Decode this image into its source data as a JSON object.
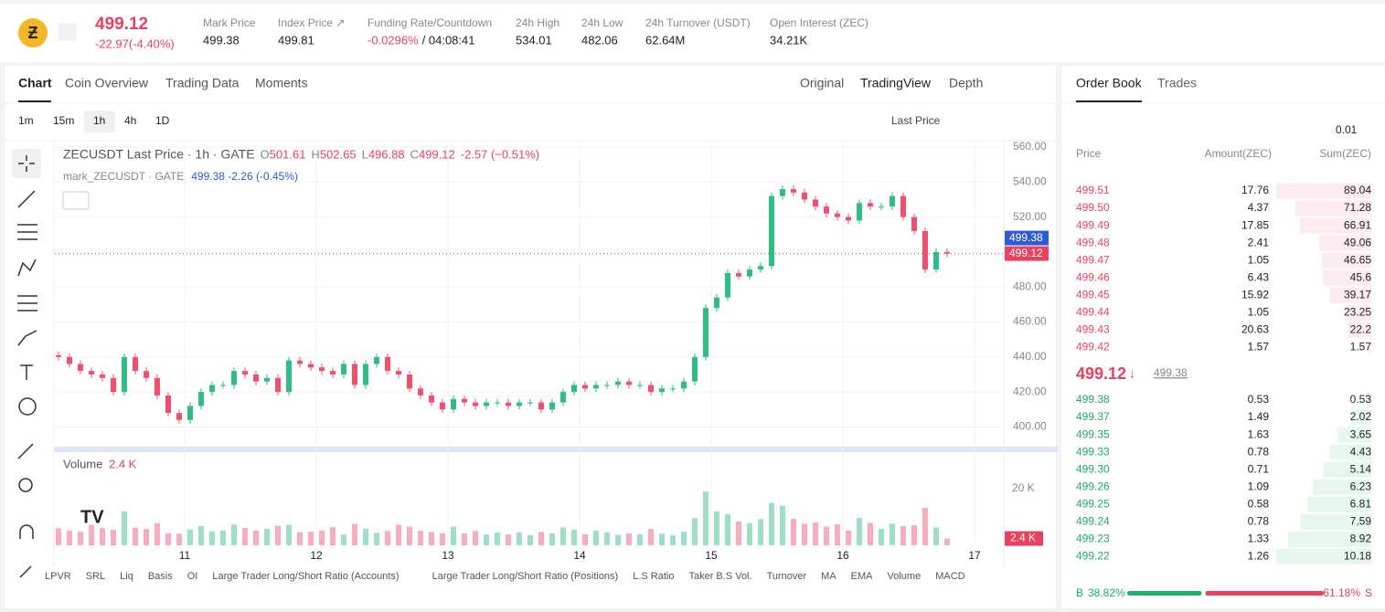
{
  "header": {
    "price": "499.12",
    "change": "-22.97(-4.40%)",
    "stats": [
      {
        "label": "Mark Price",
        "value": "499.38"
      },
      {
        "label": "Index Price ↗",
        "value": "499.81"
      },
      {
        "label": "Funding Rate/Countdown",
        "value": "-0.0296%",
        "extra": "/ 04:08:41"
      },
      {
        "label": "24h High",
        "value": "534.01"
      },
      {
        "label": "24h Low",
        "value": "482.06"
      },
      {
        "label": "24h Turnover (USDT)",
        "value": "62.64M"
      },
      {
        "label": "Open Interest (ZEC)",
        "value": "34.21K"
      }
    ]
  },
  "chart_tabs": [
    "Chart",
    "Coin Overview",
    "Trading Data",
    "Moments"
  ],
  "view_tabs": [
    "Original",
    "TradingView",
    "Depth"
  ],
  "intervals": [
    "1m",
    "15m",
    "1h",
    "4h",
    "1D"
  ],
  "price_source": "Last Price",
  "legend": {
    "symbol": "ZECUSDT Last Price · 1h · GATE",
    "ohlc": [
      [
        "O",
        "501.61"
      ],
      [
        "H",
        "502.65"
      ],
      [
        "L",
        "496.88"
      ],
      [
        "C",
        "499.12"
      ]
    ],
    "change": "-2.57 (−0.51%)",
    "mark_symbol": "mark_ZECUSDT · GATE",
    "mark_values": "499.38 -2.26 (-0.45%)"
  },
  "chart_data": {
    "type": "candlestick",
    "ylim": [
      390.3,
      560
    ],
    "yticks": [
      {
        "value": 400,
        "label": "400.00"
      },
      {
        "value": 420,
        "label": "420.00"
      },
      {
        "value": 440,
        "label": "440.00"
      },
      {
        "value": 460,
        "label": "460.00"
      },
      {
        "value": 480,
        "label": "480.00"
      },
      {
        "value": 520,
        "label": "520.00"
      },
      {
        "value": 540,
        "label": "540.00"
      },
      {
        "value": 560,
        "label": "560.00"
      }
    ],
    "xticks": [
      "11",
      "12",
      "13",
      "14",
      "15",
      "16",
      "17"
    ],
    "first_open": 441,
    "closes": [
      440,
      436,
      432,
      430,
      428,
      420,
      440,
      432,
      428,
      418,
      408,
      404,
      412,
      420,
      424,
      424,
      432,
      430,
      426,
      428,
      420,
      438,
      436,
      434,
      432,
      430,
      436,
      424,
      436,
      440,
      432,
      430,
      422,
      418,
      414,
      410,
      416,
      414,
      412,
      414,
      414,
      412,
      414,
      414,
      410,
      414,
      420,
      424,
      422,
      424,
      424,
      426,
      424,
      424,
      420,
      422,
      422,
      426,
      440,
      468,
      474,
      488,
      486,
      490,
      492,
      532,
      536,
      534,
      530,
      526,
      522,
      520,
      518,
      528,
      526,
      526,
      532,
      520,
      512,
      490,
      500,
      499.12
    ],
    "mark_price": {
      "value": 499.38,
      "label": "499.38"
    },
    "last_price": {
      "value": 499.12,
      "label": "499.12"
    },
    "volume": {
      "title": "Volume",
      "current": "2.4 K",
      "ylim": [
        0,
        20000
      ],
      "yticks": [
        {
          "value": 20000,
          "label": "20 K"
        }
      ],
      "values": [
        6000,
        5200,
        4800,
        7200,
        6100,
        5500,
        12000,
        6200,
        5800,
        7800,
        4300,
        4100,
        5600,
        6800,
        4900,
        5200,
        7400,
        6100,
        5300,
        5800,
        6900,
        7200,
        4600,
        4800,
        5200,
        6400,
        3800,
        7600,
        5900,
        4400,
        5100,
        7300,
        6600,
        5100,
        4700,
        4300,
        6600,
        4200,
        5100,
        3900,
        4500,
        3800,
        4600,
        3600,
        4700,
        4200,
        6300,
        5500,
        3900,
        5200,
        4600,
        3700,
        4200,
        3900,
        5800,
        4100,
        3600,
        4800,
        9600,
        19000,
        12000,
        11000,
        8400,
        7800,
        9200,
        15000,
        14000,
        9300,
        7600,
        8100,
        6600,
        7400,
        5300,
        9700,
        7900,
        5800,
        7700,
        6800,
        7100,
        13200,
        6300,
        2400
      ],
      "current_label": {
        "value": 2400,
        "label": "2.4 K"
      }
    }
  },
  "indicators": [
    "LPVR",
    "SRL",
    "Liq",
    "Basis",
    "OI",
    "Large Trader Long/Short Ratio (Accounts)",
    "Large Trader Long/Short Ratio (Positions)",
    "L.S Ratio",
    "Taker B.S Vol.",
    "Turnover",
    "MA",
    "EMA",
    "Volume",
    "MACD"
  ],
  "order_book": {
    "tabs": [
      "Order Book",
      "Trades"
    ],
    "precision": "0.01",
    "columns": [
      "Price",
      "Amount(ZEC)",
      "Sum(ZEC)"
    ],
    "asks": [
      [
        "499.51",
        "17.76",
        89.04
      ],
      [
        "499.50",
        "4.37",
        71.28
      ],
      [
        "499.49",
        "17.85",
        66.91
      ],
      [
        "499.48",
        "2.41",
        49.06
      ],
      [
        "499.47",
        "1.05",
        46.65
      ],
      [
        "499.46",
        "6.43",
        45.6
      ],
      [
        "499.45",
        "15.92",
        39.17
      ],
      [
        "499.44",
        "1.05",
        23.25
      ],
      [
        "499.43",
        "20.63",
        22.2
      ],
      [
        "499.42",
        "1.57",
        1.57
      ]
    ],
    "last": "499.12",
    "mark": "499.38",
    "bids": [
      [
        "499.38",
        "0.53",
        0.53
      ],
      [
        "499.37",
        "1.49",
        2.02
      ],
      [
        "499.35",
        "1.63",
        3.65
      ],
      [
        "499.33",
        "0.78",
        4.43
      ],
      [
        "499.30",
        "0.71",
        5.14
      ],
      [
        "499.26",
        "1.09",
        6.23
      ],
      [
        "499.25",
        "0.58",
        6.81
      ],
      [
        "499.24",
        "0.78",
        7.59
      ],
      [
        "499.23",
        "1.33",
        8.92
      ],
      [
        "499.22",
        "1.26",
        10.18
      ]
    ],
    "buy_label": "B",
    "buy_ratio": 38.82,
    "buy_text": "38.82%",
    "sell_ratio": 61.18,
    "sell_text": "61.18%",
    "sell_label": "S"
  }
}
